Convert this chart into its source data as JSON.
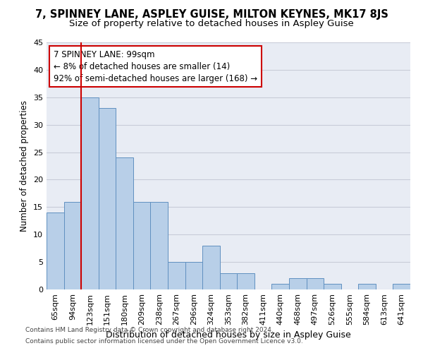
{
  "title1": "7, SPINNEY LANE, ASPLEY GUISE, MILTON KEYNES, MK17 8JS",
  "title2": "Size of property relative to detached houses in Aspley Guise",
  "xlabel": "Distribution of detached houses by size in Aspley Guise",
  "ylabel": "Number of detached properties",
  "categories": [
    "65sqm",
    "94sqm",
    "123sqm",
    "151sqm",
    "180sqm",
    "209sqm",
    "238sqm",
    "267sqm",
    "296sqm",
    "324sqm",
    "353sqm",
    "382sqm",
    "411sqm",
    "440sqm",
    "468sqm",
    "497sqm",
    "526sqm",
    "555sqm",
    "584sqm",
    "613sqm",
    "641sqm"
  ],
  "values": [
    14,
    16,
    35,
    33,
    24,
    16,
    16,
    5,
    5,
    8,
    3,
    3,
    0,
    1,
    2,
    2,
    1,
    0,
    1,
    0,
    1
  ],
  "bar_color": "#b8cfe8",
  "bar_edge_color": "#6090c0",
  "annotation_line1": "7 SPINNEY LANE: 99sqm",
  "annotation_line2": "← 8% of detached houses are smaller (14)",
  "annotation_line3": "92% of semi-detached houses are larger (168) →",
  "annotation_box_color": "#ffffff",
  "annotation_box_edge_color": "#cc0000",
  "vline_color": "#cc0000",
  "vline_x": 1.5,
  "ylim": [
    0,
    45
  ],
  "yticks": [
    0,
    5,
    10,
    15,
    20,
    25,
    30,
    35,
    40,
    45
  ],
  "grid_color": "#c8ccd8",
  "bg_color": "#e8ecf4",
  "footnote1": "Contains HM Land Registry data © Crown copyright and database right 2024.",
  "footnote2": "Contains public sector information licensed under the Open Government Licence v3.0.",
  "title1_fontsize": 10.5,
  "title2_fontsize": 9.5,
  "xlabel_fontsize": 9,
  "ylabel_fontsize": 8.5,
  "tick_fontsize": 8,
  "annot_fontsize": 8.5,
  "footnote_fontsize": 6.5
}
